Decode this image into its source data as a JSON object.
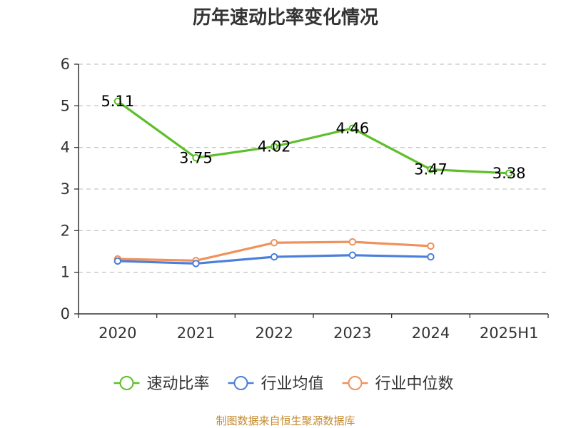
{
  "chart_data": {
    "type": "line",
    "title": "历年速动比率变化情况",
    "categories": [
      "2020",
      "2021",
      "2022",
      "2023",
      "2024",
      "2025H1"
    ],
    "ylim": [
      0,
      6
    ],
    "yticks": [
      0,
      1,
      2,
      3,
      4,
      5,
      6
    ],
    "grid": true,
    "legend_position": "bottom",
    "series": [
      {
        "name": "速动比率",
        "color": "#5dbf2a",
        "values": [
          5.11,
          3.75,
          4.02,
          4.46,
          3.47,
          3.38
        ],
        "labels": [
          "5.11",
          "3.75",
          "4.02",
          "4.46",
          "3.47",
          "3.38"
        ],
        "show_labels": true
      },
      {
        "name": "行业均值",
        "color": "#4a7fdc",
        "values": [
          1.27,
          1.21,
          1.37,
          1.41,
          1.37,
          null
        ],
        "show_labels": false
      },
      {
        "name": "行业中位数",
        "color": "#f0915a",
        "values": [
          1.32,
          1.28,
          1.71,
          1.73,
          1.63,
          null
        ],
        "show_labels": false
      }
    ],
    "source": "制图数据来自恒生聚源数据库"
  }
}
